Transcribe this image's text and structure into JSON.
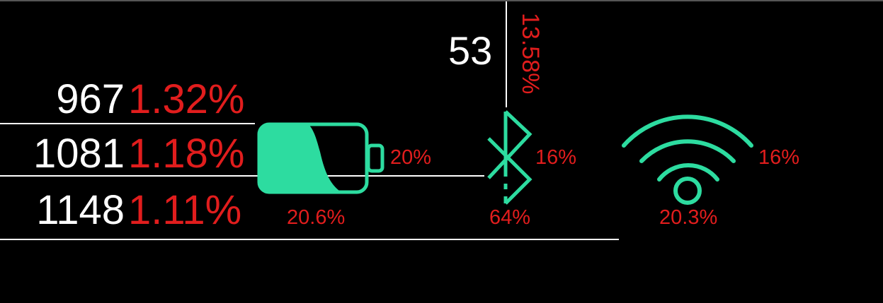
{
  "colors": {
    "background": "#000000",
    "text_white": "#ffffff",
    "text_red": "#e11d1d",
    "icon_green": "#2ddca0"
  },
  "stats": {
    "rows": [
      {
        "count": "967",
        "percent": "1.32%"
      },
      {
        "count": "1081",
        "percent": "1.18%"
      },
      {
        "count": "1148",
        "percent": "1.11%"
      }
    ]
  },
  "top_stat": {
    "count": "53",
    "percent": "13.58%"
  },
  "battery": {
    "icon": "battery-icon",
    "level_label": "20%",
    "bottom_label": "20.6%"
  },
  "bluetooth": {
    "icon": "bluetooth-icon",
    "side_label": "16%",
    "bottom_label": "64%"
  },
  "wifi": {
    "icon": "wifi-icon",
    "side_label": "16%",
    "bottom_label": "20.3%"
  }
}
